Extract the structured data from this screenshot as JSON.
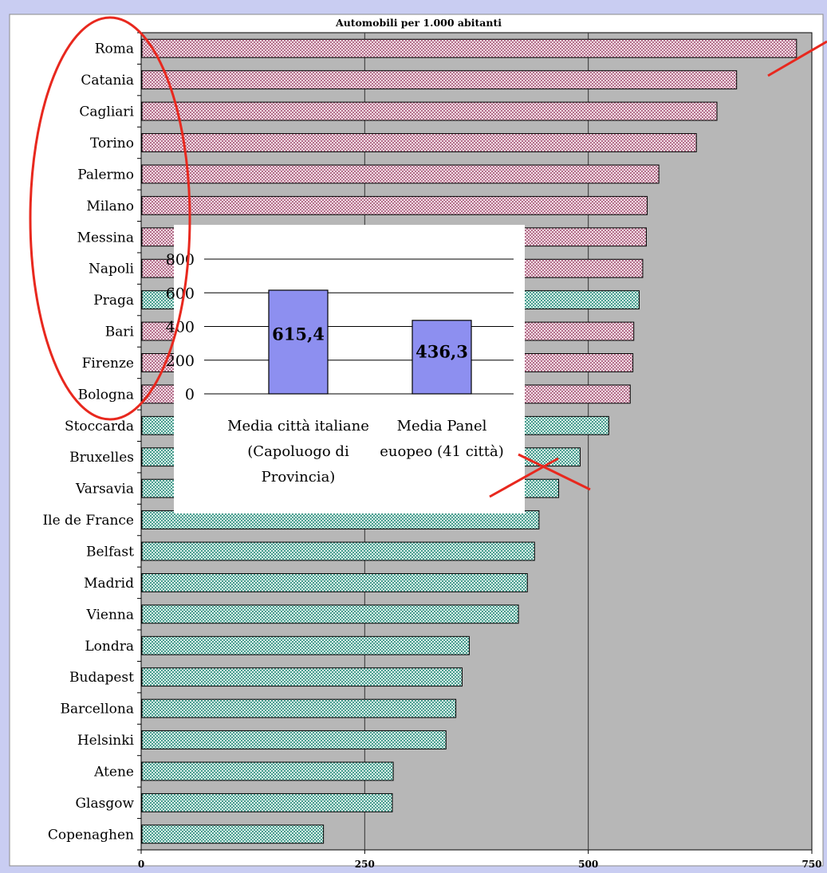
{
  "chart_data": [
    {
      "type": "bar",
      "orientation": "horizontal",
      "title": "Automobili per 1.000 abitanti",
      "categories": [
        "Roma",
        "Catania",
        "Cagliari",
        "Torino",
        "Palermo",
        "Milano",
        "Messina",
        "Napoli",
        "Praga",
        "Bari",
        "Firenze",
        "Bologna",
        "Stoccarda",
        "Bruxelles",
        "Varsavia",
        "Ile de France",
        "Belfast",
        "Madrid",
        "Vienna",
        "Londra",
        "Budapest",
        "Barcellona",
        "Helsinki",
        "Atene",
        "Glasgow",
        "Copenaghen"
      ],
      "values": [
        732,
        665,
        643,
        620,
        578,
        565,
        564,
        560,
        556,
        550,
        549,
        546,
        522,
        490,
        466,
        444,
        439,
        431,
        421,
        366,
        358,
        351,
        340,
        281,
        280,
        203
      ],
      "groups": [
        "italian",
        "italian",
        "italian",
        "italian",
        "italian",
        "italian",
        "italian",
        "italian",
        "european",
        "italian",
        "italian",
        "italian",
        "european",
        "european",
        "european",
        "european",
        "european",
        "european",
        "european",
        "european",
        "european",
        "european",
        "european",
        "european",
        "european",
        "european"
      ],
      "xlim": [
        0,
        750
      ],
      "xticks": [
        "0",
        "250",
        "500",
        "750"
      ],
      "xlabel": "",
      "ylabel": "",
      "grid": true,
      "colors": {
        "italian": "#b4708c",
        "european": "#4a9e90",
        "plot_bg": "#b7b7b7"
      }
    },
    {
      "type": "bar",
      "categories": [
        "Media città italiane (Capoluogo di Provincia)",
        "Media Panel euopeo (41 città)"
      ],
      "category_lines": [
        [
          "Media città italiane",
          "(Capoluogo di",
          "Provincia)"
        ],
        [
          "Media Panel",
          "euopeo (41 città)"
        ]
      ],
      "values": [
        615.4,
        436.3
      ],
      "value_labels": [
        "615,4",
        "436,3"
      ],
      "ylim": [
        0,
        800
      ],
      "yticks": [
        "0",
        "200",
        "400",
        "600",
        "800"
      ],
      "grid": true,
      "colors": {
        "bar": "#8d8ff0"
      }
    }
  ],
  "annotations": {
    "color": "#e8281e"
  }
}
